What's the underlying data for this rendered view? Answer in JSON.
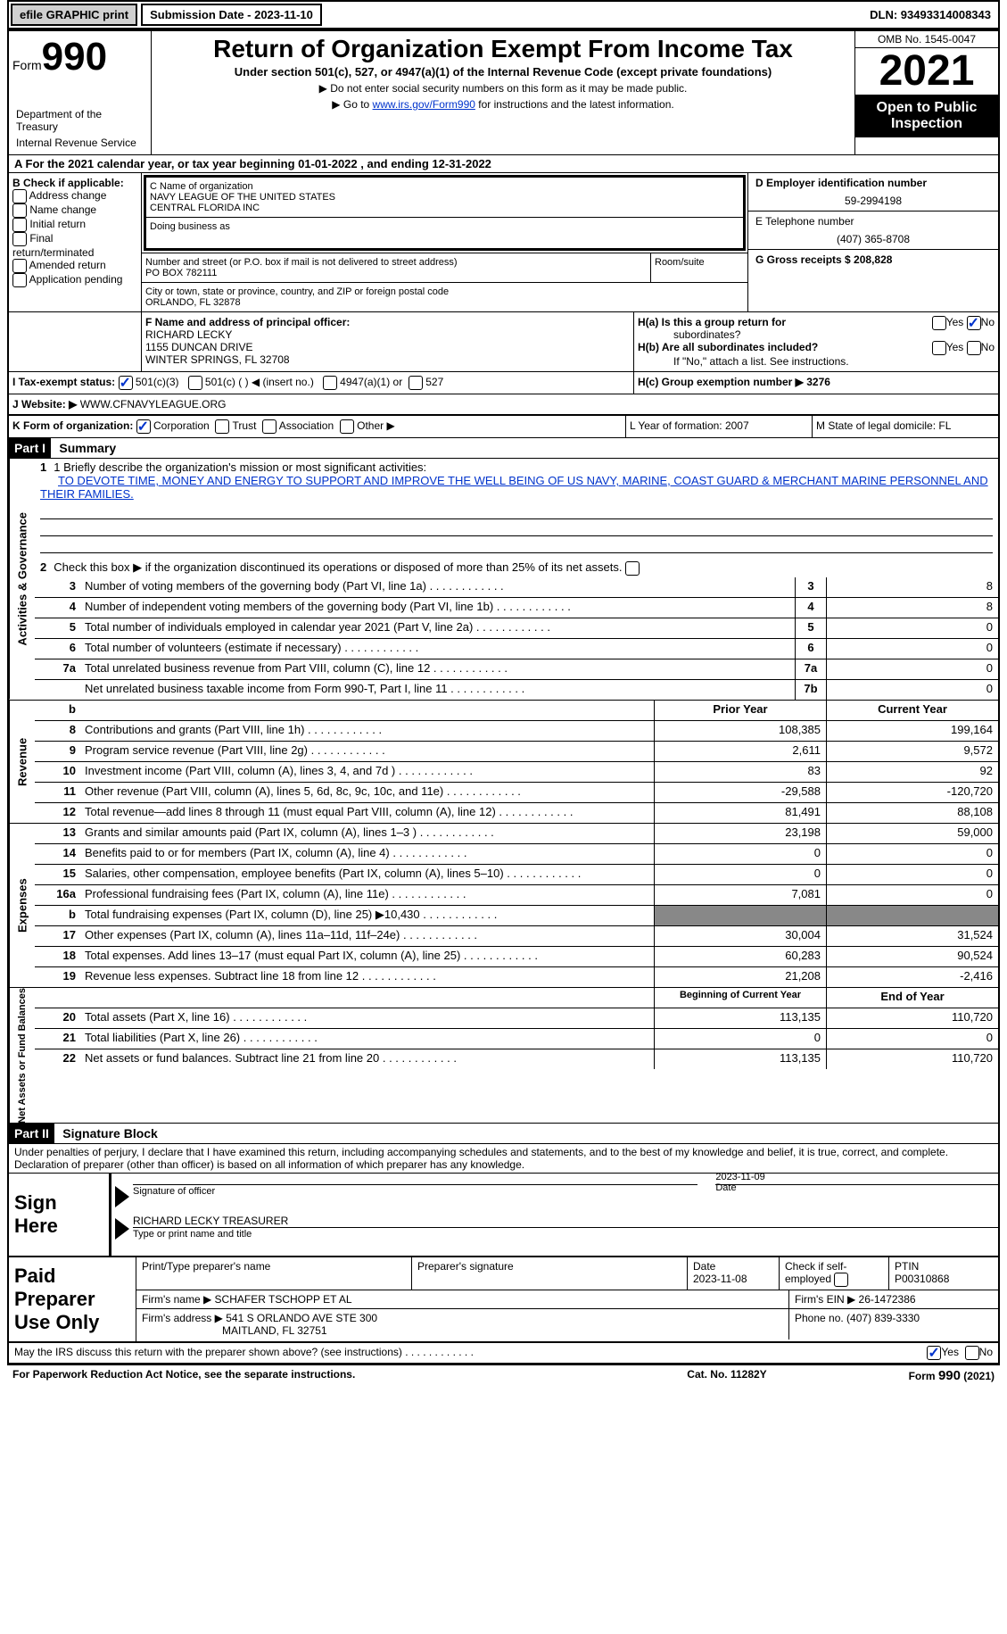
{
  "topbar": {
    "efile_label": "efile GRAPHIC print",
    "submission_label": "Submission Date - 2023-11-10",
    "dln_label": "DLN: 93493314008343"
  },
  "header": {
    "form_prefix": "Form",
    "form_number": "990",
    "title": "Return of Organization Exempt From Income Tax",
    "subtitle": "Under section 501(c), 527, or 4947(a)(1) of the Internal Revenue Code (except private foundations)",
    "note1": "▶ Do not enter social security numbers on this form as it may be made public.",
    "note2_prefix": "▶ Go to ",
    "note2_link": "www.irs.gov/Form990",
    "note2_suffix": " for instructions and the latest information.",
    "dept1": "Department of the Treasury",
    "dept2": "Internal Revenue Service",
    "omb": "OMB No. 1545-0047",
    "year": "2021",
    "open_pub1": "Open to Public",
    "open_pub2": "Inspection"
  },
  "row_a": {
    "text": "A For the 2021 calendar year, or tax year beginning 01-01-2022    , and ending 12-31-2022"
  },
  "col_b": {
    "header": "B Check if applicable:",
    "opt1": "Address change",
    "opt2": "Name change",
    "opt3": "Initial return",
    "opt4": "Final return/terminated",
    "opt5": "Amended return",
    "opt6": "Application pending"
  },
  "col_c": {
    "name_label": "C Name of organization",
    "name1": "NAVY LEAGUE OF THE UNITED STATES",
    "name2": "CENTRAL FLORIDA INC",
    "dba_label": "Doing business as",
    "addr_label": "Number and street (or P.O. box if mail is not delivered to street address)",
    "addr": "PO BOX 782111",
    "room_label": "Room/suite",
    "city_label": "City or town, state or province, country, and ZIP or foreign postal code",
    "city": "ORLANDO, FL  32878"
  },
  "col_de": {
    "d_label": "D Employer identification number",
    "d_val": "59-2994198",
    "e_label": "E Telephone number",
    "e_val": "(407) 365-8708",
    "g_label": "G Gross receipts $ 208,828"
  },
  "col_f": {
    "label": "F Name and address of principal officer:",
    "name": "RICHARD LECKY",
    "addr1": "1155 DUNCAN DRIVE",
    "addr2": "WINTER SPRINGS, FL  32708"
  },
  "col_h": {
    "ha_label": "H(a)  Is this a group return for",
    "ha_sub": "subordinates?",
    "hb_label": "H(b)  Are all subordinates included?",
    "hb_note": "If \"No,\" attach a list. See instructions.",
    "hc_label": "H(c)  Group exemption number ▶   3276",
    "yes": "Yes",
    "no": "No"
  },
  "row_i": {
    "label": "I    Tax-exempt status:",
    "opt1": "501(c)(3)",
    "opt2": "501(c) (  ) ◀ (insert no.)",
    "opt3": "4947(a)(1) or",
    "opt4": "527"
  },
  "row_j": {
    "label": "J   Website: ▶ ",
    "val": "WWW.CFNAVYLEAGUE.ORG"
  },
  "row_k": {
    "label": "K Form of organization:",
    "opt1": "Corporation",
    "opt2": "Trust",
    "opt3": "Association",
    "opt4": "Other ▶",
    "l_label": "L Year of formation: 2007",
    "m_label": "M State of legal domicile: FL"
  },
  "part1": {
    "header": "Part I",
    "title": "Summary",
    "line1_label": "1  Briefly describe the organization's mission or most significant activities:",
    "line1_text": "TO DEVOTE TIME, MONEY AND ENERGY TO SUPPORT AND IMPROVE THE WELL BEING OF US NAVY, MARINE, COAST GUARD & MERCHANT MARINE PERSONNEL AND THEIR FAMILIES.",
    "line2_label": "Check this box ▶     if the organization discontinued its operations or disposed of more than 25% of its net assets.",
    "vert1": "Activities & Governance",
    "vert2": "Revenue",
    "vert3": "Expenses",
    "vert4": "Net Assets or Fund Balances",
    "lines_gov": [
      {
        "n": "3",
        "d": "Number of voting members of the governing body (Part VI, line 1a)",
        "box": "3",
        "v": "8"
      },
      {
        "n": "4",
        "d": "Number of independent voting members of the governing body (Part VI, line 1b)",
        "box": "4",
        "v": "8"
      },
      {
        "n": "5",
        "d": "Total number of individuals employed in calendar year 2021 (Part V, line 2a)",
        "box": "5",
        "v": "0"
      },
      {
        "n": "6",
        "d": "Total number of volunteers (estimate if necessary)",
        "box": "6",
        "v": "0"
      },
      {
        "n": "7a",
        "d": "Total unrelated business revenue from Part VIII, column (C), line 12",
        "box": "7a",
        "v": "0"
      },
      {
        "n": "",
        "d": "Net unrelated business taxable income from Form 990-T, Part I, line 11",
        "box": "7b",
        "v": "0"
      }
    ],
    "col_b_header": "b",
    "prior_header": "Prior Year",
    "current_header": "Current Year",
    "lines_rev": [
      {
        "n": "8",
        "d": "Contributions and grants (Part VIII, line 1h)",
        "p": "108,385",
        "c": "199,164"
      },
      {
        "n": "9",
        "d": "Program service revenue (Part VIII, line 2g)",
        "p": "2,611",
        "c": "9,572"
      },
      {
        "n": "10",
        "d": "Investment income (Part VIII, column (A), lines 3, 4, and 7d )",
        "p": "83",
        "c": "92"
      },
      {
        "n": "11",
        "d": "Other revenue (Part VIII, column (A), lines 5, 6d, 8c, 9c, 10c, and 11e)",
        "p": "-29,588",
        "c": "-120,720"
      },
      {
        "n": "12",
        "d": "Total revenue—add lines 8 through 11 (must equal Part VIII, column (A), line 12)",
        "p": "81,491",
        "c": "88,108"
      }
    ],
    "lines_exp": [
      {
        "n": "13",
        "d": "Grants and similar amounts paid (Part IX, column (A), lines 1–3 )",
        "p": "23,198",
        "c": "59,000"
      },
      {
        "n": "14",
        "d": "Benefits paid to or for members (Part IX, column (A), line 4)",
        "p": "0",
        "c": "0"
      },
      {
        "n": "15",
        "d": "Salaries, other compensation, employee benefits (Part IX, column (A), lines 5–10)",
        "p": "0",
        "c": "0"
      },
      {
        "n": "16a",
        "d": "Professional fundraising fees (Part IX, column (A), line 11e)",
        "p": "7,081",
        "c": "0"
      },
      {
        "n": "b",
        "d": "Total fundraising expenses (Part IX, column (D), line 25) ▶10,430",
        "p": "grey",
        "c": "grey"
      },
      {
        "n": "17",
        "d": "Other expenses (Part IX, column (A), lines 11a–11d, 11f–24e)",
        "p": "30,004",
        "c": "31,524"
      },
      {
        "n": "18",
        "d": "Total expenses. Add lines 13–17 (must equal Part IX, column (A), line 25)",
        "p": "60,283",
        "c": "90,524"
      },
      {
        "n": "19",
        "d": "Revenue less expenses. Subtract line 18 from line 12",
        "p": "21,208",
        "c": "-2,416"
      }
    ],
    "begin_header": "Beginning of Current Year",
    "end_header": "End of Year",
    "lines_net": [
      {
        "n": "20",
        "d": "Total assets (Part X, line 16)",
        "p": "113,135",
        "c": "110,720"
      },
      {
        "n": "21",
        "d": "Total liabilities (Part X, line 26)",
        "p": "0",
        "c": "0"
      },
      {
        "n": "22",
        "d": "Net assets or fund balances. Subtract line 21 from line 20",
        "p": "113,135",
        "c": "110,720"
      }
    ]
  },
  "part2": {
    "header": "Part II",
    "title": "Signature Block",
    "decl": "Under penalties of perjury, I declare that I have examined this return, including accompanying schedules and statements, and to the best of my knowledge and belief, it is true, correct, and complete. Declaration of preparer (other than officer) is based on all information of which preparer has any knowledge.",
    "sign_here": "Sign Here",
    "sig_officer": "Signature of officer",
    "sig_date": "2023-11-09",
    "sig_date_label": "Date",
    "sig_name": "RICHARD LECKY TREASURER",
    "sig_name_label": "Type or print name and title"
  },
  "prep": {
    "label": "Paid Preparer Use Only",
    "r1c1_label": "Print/Type preparer's name",
    "r1c2_label": "Preparer's signature",
    "r1c3_label": "Date",
    "r1c3_val": "2023-11-08",
    "r1c4_label": "Check     if self-employed",
    "r1c5_label": "PTIN",
    "r1c5_val": "P00310868",
    "r2c1_label": "Firm's name    ▶ ",
    "r2c1_val": "SCHAFER TSCHOPP ET AL",
    "r2c2_label": "Firm's EIN ▶ 26-1472386",
    "r3c1_label": "Firm's address ▶",
    "r3c1_val1": "541 S ORLANDO AVE STE 300",
    "r3c1_val2": "MAITLAND, FL  32751",
    "r3c2_label": "Phone no. (407) 839-3330"
  },
  "footer": {
    "discuss": "May the IRS discuss this return with the preparer shown above? (see instructions)",
    "yes": "Yes",
    "no": "No",
    "paperwork": "For Paperwork Reduction Act Notice, see the separate instructions.",
    "cat": "Cat. No. 11282Y",
    "form": "Form 990 (2021)"
  },
  "colors": {
    "link": "#0033cc",
    "black": "#000000",
    "grey_btn": "#d0d0d0",
    "grey_fill": "#888888"
  }
}
